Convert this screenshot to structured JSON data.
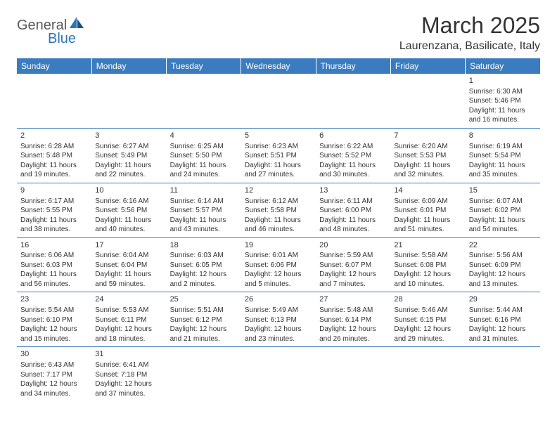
{
  "logo": {
    "part1": "General",
    "part2": "Blue"
  },
  "title": "March 2025",
  "location": "Laurenzana, Basilicate, Italy",
  "colors": {
    "header_bg": "#3a7cbf",
    "header_fg": "#ffffff",
    "rule": "#3a7cbf",
    "text": "#333333",
    "logo_gray": "#58595b",
    "logo_blue": "#2e75b6"
  },
  "daynames": [
    "Sunday",
    "Monday",
    "Tuesday",
    "Wednesday",
    "Thursday",
    "Friday",
    "Saturday"
  ],
  "weeks": [
    [
      null,
      null,
      null,
      null,
      null,
      null,
      {
        "n": "1",
        "sr": "Sunrise: 6:30 AM",
        "ss": "Sunset: 5:46 PM",
        "d1": "Daylight: 11 hours",
        "d2": "and 16 minutes."
      }
    ],
    [
      {
        "n": "2",
        "sr": "Sunrise: 6:28 AM",
        "ss": "Sunset: 5:48 PM",
        "d1": "Daylight: 11 hours",
        "d2": "and 19 minutes."
      },
      {
        "n": "3",
        "sr": "Sunrise: 6:27 AM",
        "ss": "Sunset: 5:49 PM",
        "d1": "Daylight: 11 hours",
        "d2": "and 22 minutes."
      },
      {
        "n": "4",
        "sr": "Sunrise: 6:25 AM",
        "ss": "Sunset: 5:50 PM",
        "d1": "Daylight: 11 hours",
        "d2": "and 24 minutes."
      },
      {
        "n": "5",
        "sr": "Sunrise: 6:23 AM",
        "ss": "Sunset: 5:51 PM",
        "d1": "Daylight: 11 hours",
        "d2": "and 27 minutes."
      },
      {
        "n": "6",
        "sr": "Sunrise: 6:22 AM",
        "ss": "Sunset: 5:52 PM",
        "d1": "Daylight: 11 hours",
        "d2": "and 30 minutes."
      },
      {
        "n": "7",
        "sr": "Sunrise: 6:20 AM",
        "ss": "Sunset: 5:53 PM",
        "d1": "Daylight: 11 hours",
        "d2": "and 32 minutes."
      },
      {
        "n": "8",
        "sr": "Sunrise: 6:19 AM",
        "ss": "Sunset: 5:54 PM",
        "d1": "Daylight: 11 hours",
        "d2": "and 35 minutes."
      }
    ],
    [
      {
        "n": "9",
        "sr": "Sunrise: 6:17 AM",
        "ss": "Sunset: 5:55 PM",
        "d1": "Daylight: 11 hours",
        "d2": "and 38 minutes."
      },
      {
        "n": "10",
        "sr": "Sunrise: 6:16 AM",
        "ss": "Sunset: 5:56 PM",
        "d1": "Daylight: 11 hours",
        "d2": "and 40 minutes."
      },
      {
        "n": "11",
        "sr": "Sunrise: 6:14 AM",
        "ss": "Sunset: 5:57 PM",
        "d1": "Daylight: 11 hours",
        "d2": "and 43 minutes."
      },
      {
        "n": "12",
        "sr": "Sunrise: 6:12 AM",
        "ss": "Sunset: 5:58 PM",
        "d1": "Daylight: 11 hours",
        "d2": "and 46 minutes."
      },
      {
        "n": "13",
        "sr": "Sunrise: 6:11 AM",
        "ss": "Sunset: 6:00 PM",
        "d1": "Daylight: 11 hours",
        "d2": "and 48 minutes."
      },
      {
        "n": "14",
        "sr": "Sunrise: 6:09 AM",
        "ss": "Sunset: 6:01 PM",
        "d1": "Daylight: 11 hours",
        "d2": "and 51 minutes."
      },
      {
        "n": "15",
        "sr": "Sunrise: 6:07 AM",
        "ss": "Sunset: 6:02 PM",
        "d1": "Daylight: 11 hours",
        "d2": "and 54 minutes."
      }
    ],
    [
      {
        "n": "16",
        "sr": "Sunrise: 6:06 AM",
        "ss": "Sunset: 6:03 PM",
        "d1": "Daylight: 11 hours",
        "d2": "and 56 minutes."
      },
      {
        "n": "17",
        "sr": "Sunrise: 6:04 AM",
        "ss": "Sunset: 6:04 PM",
        "d1": "Daylight: 11 hours",
        "d2": "and 59 minutes."
      },
      {
        "n": "18",
        "sr": "Sunrise: 6:03 AM",
        "ss": "Sunset: 6:05 PM",
        "d1": "Daylight: 12 hours",
        "d2": "and 2 minutes."
      },
      {
        "n": "19",
        "sr": "Sunrise: 6:01 AM",
        "ss": "Sunset: 6:06 PM",
        "d1": "Daylight: 12 hours",
        "d2": "and 5 minutes."
      },
      {
        "n": "20",
        "sr": "Sunrise: 5:59 AM",
        "ss": "Sunset: 6:07 PM",
        "d1": "Daylight: 12 hours",
        "d2": "and 7 minutes."
      },
      {
        "n": "21",
        "sr": "Sunrise: 5:58 AM",
        "ss": "Sunset: 6:08 PM",
        "d1": "Daylight: 12 hours",
        "d2": "and 10 minutes."
      },
      {
        "n": "22",
        "sr": "Sunrise: 5:56 AM",
        "ss": "Sunset: 6:09 PM",
        "d1": "Daylight: 12 hours",
        "d2": "and 13 minutes."
      }
    ],
    [
      {
        "n": "23",
        "sr": "Sunrise: 5:54 AM",
        "ss": "Sunset: 6:10 PM",
        "d1": "Daylight: 12 hours",
        "d2": "and 15 minutes."
      },
      {
        "n": "24",
        "sr": "Sunrise: 5:53 AM",
        "ss": "Sunset: 6:11 PM",
        "d1": "Daylight: 12 hours",
        "d2": "and 18 minutes."
      },
      {
        "n": "25",
        "sr": "Sunrise: 5:51 AM",
        "ss": "Sunset: 6:12 PM",
        "d1": "Daylight: 12 hours",
        "d2": "and 21 minutes."
      },
      {
        "n": "26",
        "sr": "Sunrise: 5:49 AM",
        "ss": "Sunset: 6:13 PM",
        "d1": "Daylight: 12 hours",
        "d2": "and 23 minutes."
      },
      {
        "n": "27",
        "sr": "Sunrise: 5:48 AM",
        "ss": "Sunset: 6:14 PM",
        "d1": "Daylight: 12 hours",
        "d2": "and 26 minutes."
      },
      {
        "n": "28",
        "sr": "Sunrise: 5:46 AM",
        "ss": "Sunset: 6:15 PM",
        "d1": "Daylight: 12 hours",
        "d2": "and 29 minutes."
      },
      {
        "n": "29",
        "sr": "Sunrise: 5:44 AM",
        "ss": "Sunset: 6:16 PM",
        "d1": "Daylight: 12 hours",
        "d2": "and 31 minutes."
      }
    ],
    [
      {
        "n": "30",
        "sr": "Sunrise: 6:43 AM",
        "ss": "Sunset: 7:17 PM",
        "d1": "Daylight: 12 hours",
        "d2": "and 34 minutes."
      },
      {
        "n": "31",
        "sr": "Sunrise: 6:41 AM",
        "ss": "Sunset: 7:18 PM",
        "d1": "Daylight: 12 hours",
        "d2": "and 37 minutes."
      },
      null,
      null,
      null,
      null,
      null
    ]
  ]
}
